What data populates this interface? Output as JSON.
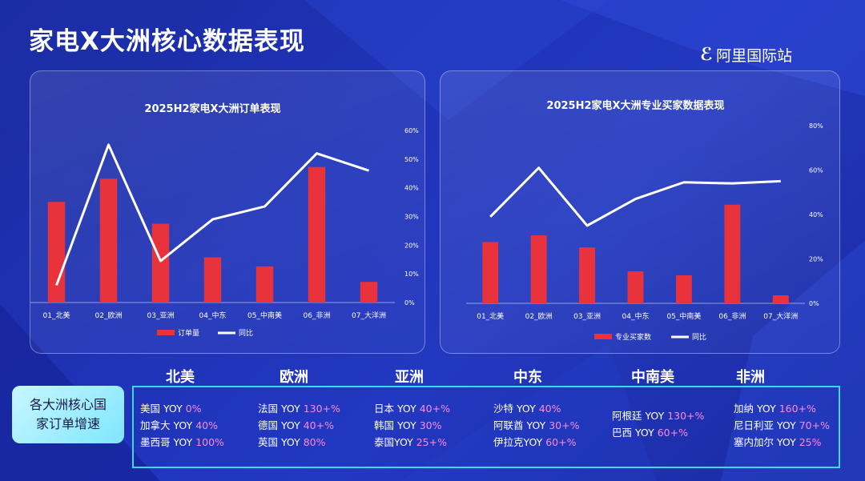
{
  "page": {
    "title": "家电X大洲核心数据表现",
    "logo": "阿里国际站",
    "logo_mark": "ℰ"
  },
  "chart_data": [
    {
      "type": "bar",
      "title": "2025H2家电X大洲订单表现",
      "categories": [
        "01_北美",
        "02_欧洲",
        "03_亚洲",
        "04_中东",
        "05_中南美",
        "06_非洲",
        "07_大洋洲"
      ],
      "series": [
        {
          "name": "订单量",
          "type": "bar",
          "color": "#e8323c",
          "values": [
            0.78,
            0.96,
            0.61,
            0.35,
            0.28,
            1.05,
            0.16
          ]
        },
        {
          "name": "同比",
          "type": "line",
          "color": "#ffffff",
          "axis": "right",
          "values": [
            0.06,
            0.55,
            0.145,
            0.29,
            0.335,
            0.52,
            0.46
          ]
        }
      ],
      "y_hidden": true,
      "y2lim": [
        0,
        0.6
      ],
      "y2ticks": [
        "0%",
        "10%",
        "20%",
        "30%",
        "40%",
        "50%",
        "60%"
      ],
      "legend": "bottom"
    },
    {
      "type": "bar",
      "title": "2025H2家电X大洲专业买家数据表现",
      "categories": [
        "01_北美",
        "02_欧洲",
        "03_亚洲",
        "04_中东",
        "05_中南美",
        "06_非洲",
        "07_大洋洲"
      ],
      "series": [
        {
          "name": "专业买家数",
          "type": "bar",
          "color": "#e8323c",
          "values": [
            0.46,
            0.51,
            0.42,
            0.24,
            0.21,
            0.74,
            0.06
          ]
        },
        {
          "name": "同比",
          "type": "line",
          "color": "#ffffff",
          "axis": "right",
          "values": [
            0.39,
            0.61,
            0.35,
            0.47,
            0.545,
            0.54,
            0.55
          ]
        }
      ],
      "y_hidden": true,
      "y2lim": [
        0,
        0.8
      ],
      "y2ticks": [
        "0%",
        "20%",
        "40%",
        "60%",
        "80%"
      ],
      "legend": "bottom"
    }
  ],
  "growth": {
    "label": "各大洲核心国家订单增速",
    "regions": [
      {
        "name": "北美",
        "rows": [
          {
            "country": "美国 YOY ",
            "yoy": "0%"
          },
          {
            "country": "加拿大 YOY ",
            "yoy": "40%"
          },
          {
            "country": "墨西哥 YOY ",
            "yoy": "100%"
          }
        ]
      },
      {
        "name": "欧洲",
        "rows": [
          {
            "country": "法国 YOY ",
            "yoy": "130+%"
          },
          {
            "country": "德国 YOY ",
            "yoy": "40+%"
          },
          {
            "country": "英国 YOY ",
            "yoy": "80%"
          }
        ]
      },
      {
        "name": "亚洲",
        "rows": [
          {
            "country": "日本 YOY ",
            "yoy": "40+%"
          },
          {
            "country": "韩国 YOY ",
            "yoy": "30%"
          },
          {
            "country": "泰国YOY ",
            "yoy": "25+%"
          }
        ]
      },
      {
        "name": "中东",
        "rows": [
          {
            "country": "沙特 YOY ",
            "yoy": "40%"
          },
          {
            "country": "阿联酋 YOY ",
            "yoy": "30+%"
          },
          {
            "country": "伊拉克YOY ",
            "yoy": "60+%"
          }
        ]
      },
      {
        "name": "中南美",
        "rows": [
          {
            "country": "阿根廷 YOY ",
            "yoy": "130+%"
          },
          {
            "country": "巴西 YOY ",
            "yoy": "60+%"
          }
        ]
      },
      {
        "name": "非洲",
        "rows": [
          {
            "country": "加纳 YOY ",
            "yoy": "160+%"
          },
          {
            "country": "尼日利亚 YOY ",
            "yoy": "70+%"
          },
          {
            "country": "塞内加尔 YOY ",
            "yoy": "25%"
          }
        ]
      }
    ]
  }
}
